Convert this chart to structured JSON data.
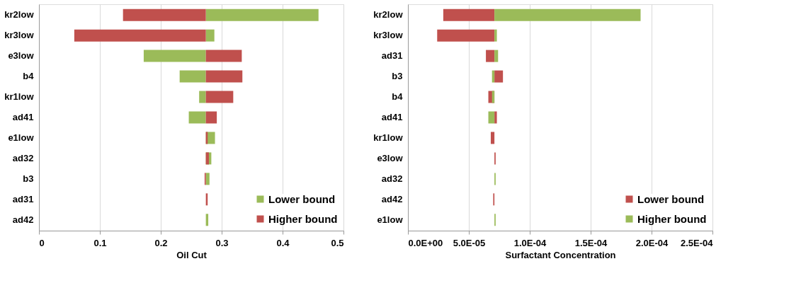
{
  "chart_data": [
    {
      "type": "bar",
      "orientation": "horizontal",
      "xlabel": "Oil Cut",
      "categories": [
        "kr2low",
        "kr3low",
        "e3low",
        "b4",
        "kr1low",
        "ad41",
        "e1low",
        "ad32",
        "b3",
        "ad31",
        "ad42"
      ],
      "series": [
        {
          "name": "Lower bound",
          "color": "#9bbb59",
          "base": [
            0.274,
            0.274,
            0.274,
            0.274,
            0.274,
            0.274,
            0.274,
            0.274,
            0.274,
            null,
            0.274
          ],
          "values": [
            0.185,
            0.014,
            -0.102,
            -0.043,
            -0.011,
            -0.028,
            0.015,
            0.009,
            0.006,
            null,
            0.004
          ]
        },
        {
          "name": "Higher bound",
          "color": "#c0504d",
          "base": [
            0.274,
            0.274,
            0.274,
            0.274,
            0.274,
            0.274,
            0.274,
            0.274,
            0.274,
            0.274,
            null
          ],
          "values": [
            -0.136,
            -0.216,
            0.059,
            0.06,
            0.045,
            0.018,
            0.003,
            0.005,
            -0.002,
            0.003,
            null
          ]
        }
      ],
      "xlim": [
        0,
        0.5
      ],
      "xticks": [
        0,
        0.1,
        0.2,
        0.3,
        0.4,
        0.5
      ],
      "grid": "x",
      "legend": "bottom right"
    },
    {
      "type": "bar",
      "orientation": "horizontal",
      "xlabel": "Surfactant Concentration",
      "categories": [
        "kr2low",
        "kr3low",
        "ad31",
        "b3",
        "b4",
        "ad41",
        "kr1low",
        "e3low",
        "ad32",
        "ad42",
        "e1low"
      ],
      "series": [
        {
          "name": "Lower bound",
          "color": "#c0504d",
          "base": [
            7.1e-05,
            7.1e-05,
            7.1e-05,
            7.1e-05,
            7.1e-05,
            7.1e-05,
            7.1e-05,
            7.1e-05,
            null,
            7.1e-05,
            null
          ],
          "values": [
            -4.2e-05,
            -4.7e-05,
            -7e-06,
            7e-06,
            -5e-06,
            2e-06,
            -3e-06,
            1e-06,
            null,
            -1e-06,
            null
          ]
        },
        {
          "name": "Higher bound",
          "color": "#9bbb59",
          "base": [
            7.1e-05,
            7.1e-05,
            7.1e-05,
            7.1e-05,
            7.1e-05,
            7.1e-05,
            null,
            null,
            7.1e-05,
            null,
            7.1e-05
          ],
          "values": [
            0.00012,
            2e-06,
            3e-06,
            -2e-06,
            -2e-06,
            -5e-06,
            null,
            null,
            1e-06,
            null,
            1e-06
          ]
        }
      ],
      "xlim": [
        0,
        0.00025
      ],
      "xticks": [
        {
          "value": 0,
          "label": "0.0E+00"
        },
        {
          "value": 5e-05,
          "label": "5.0E-05"
        },
        {
          "value": 0.0001,
          "label": "1.0E-04"
        },
        {
          "value": 0.00015,
          "label": "1.5E-04"
        },
        {
          "value": 0.0002,
          "label": "2.0E-04"
        },
        {
          "value": 0.00025,
          "label": "2.5E-04"
        }
      ],
      "grid": "x",
      "legend": "bottom right"
    }
  ]
}
